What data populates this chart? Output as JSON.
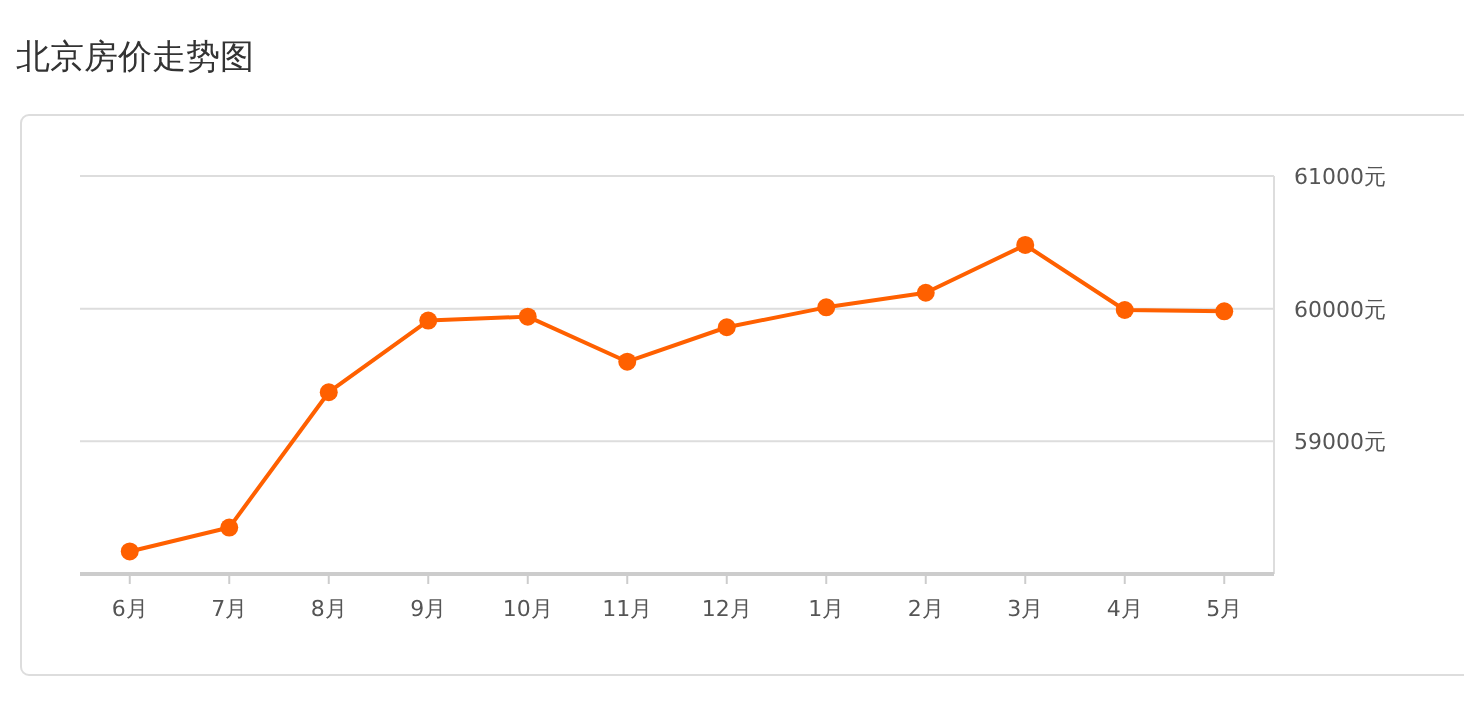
{
  "chart_data": {
    "type": "line",
    "title": "北京房价走势图",
    "categories": [
      "6月",
      "7月",
      "8月",
      "9月",
      "10月",
      "11月",
      "12月",
      "1月",
      "2月",
      "3月",
      "4月",
      "5月"
    ],
    "series": [
      {
        "color": "#ff6000",
        "values": [
          58170,
          58350,
          59370,
          59910,
          59940,
          59600,
          59860,
          60010,
          60120,
          60480,
          59990,
          59980
        ]
      }
    ],
    "ylim": [
      58000,
      61000
    ],
    "yticks": [
      {
        "value": 59000,
        "label": "59000元"
      },
      {
        "value": 60000,
        "label": "60000元"
      },
      {
        "value": 61000,
        "label": "61000元"
      }
    ],
    "grid": "y",
    "marker": "circle",
    "line_style": "solid"
  }
}
